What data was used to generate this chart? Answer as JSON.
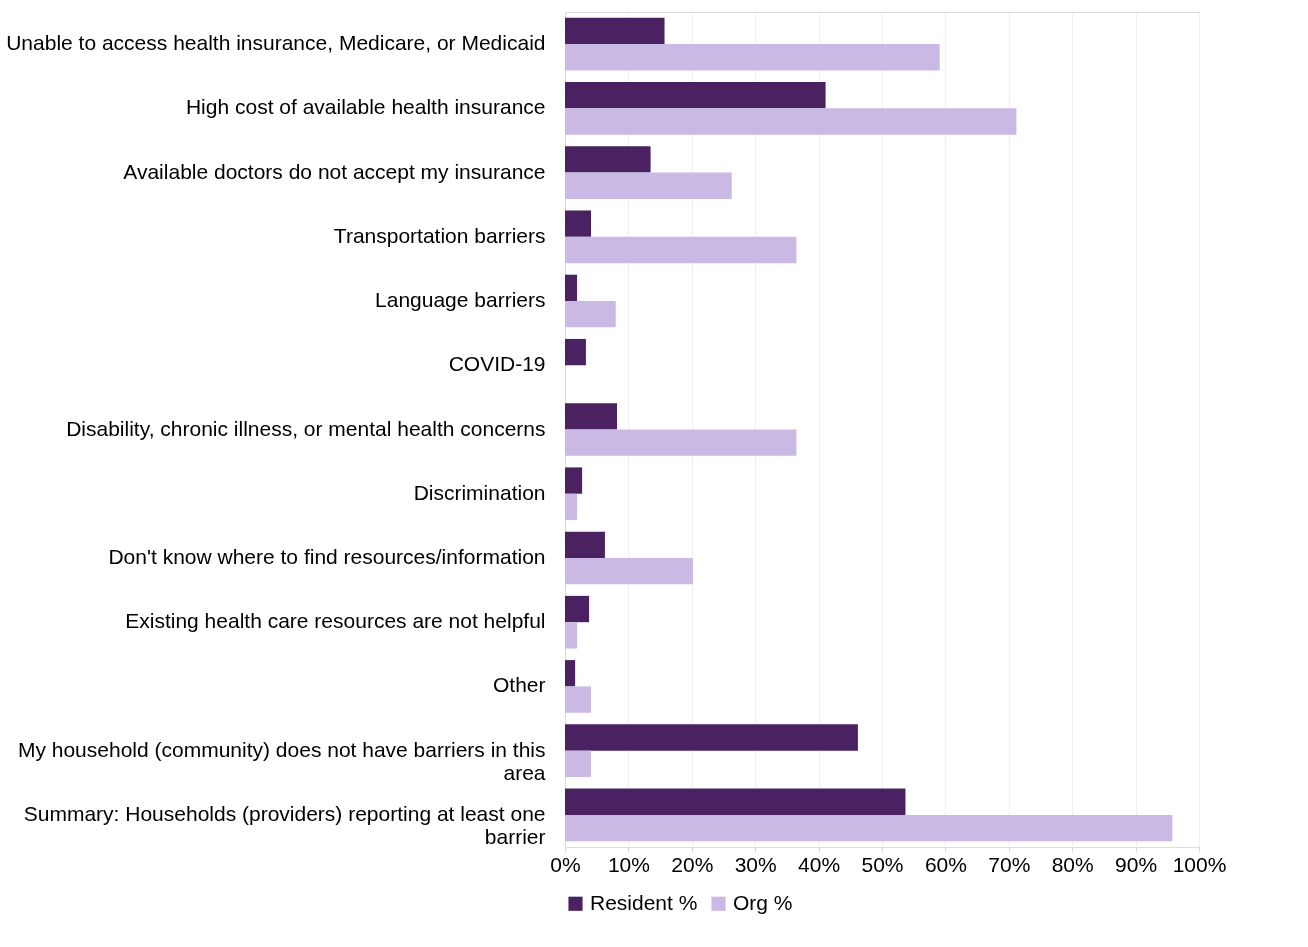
{
  "chart_data": {
    "type": "bar",
    "orientation": "horizontal",
    "categories": [
      "Unable to access health insurance, Medicare, or Medicaid",
      "High cost of available health insurance",
      "Available doctors do not accept my insurance",
      "Transportation barriers",
      "Language barriers",
      "COVID-19",
      "Disability, chronic illness, or mental health concerns",
      "Discrimination",
      "Don't know where to find resources/information",
      "Existing health care resources are not helpful",
      "Other",
      "My household (community) does not have barriers in this area",
      "Summary: Households (providers) reporting at least one barrier"
    ],
    "series": [
      {
        "name": "Resident %",
        "color": "#4a2262",
        "values": [
          15.7,
          41.1,
          13.5,
          4.1,
          1.9,
          3.3,
          8.2,
          2.7,
          6.3,
          3.8,
          1.6,
          46.2,
          53.7
        ]
      },
      {
        "name": "Org %",
        "color": "#cbb9e5",
        "values": [
          59.1,
          71.2,
          26.3,
          36.5,
          8.0,
          0,
          36.5,
          1.9,
          20.2,
          1.9,
          4.1,
          4.1,
          95.8
        ]
      }
    ],
    "xlim": [
      0,
      100
    ],
    "xticks": [
      {
        "value": 0,
        "label": "0%"
      },
      {
        "value": 10,
        "label": "10%"
      },
      {
        "value": 20,
        "label": "20%"
      },
      {
        "value": 30,
        "label": "30%"
      },
      {
        "value": 40,
        "label": "40%"
      },
      {
        "value": 50,
        "label": "50%"
      },
      {
        "value": 60,
        "label": "60%"
      },
      {
        "value": 70,
        "label": "70%"
      },
      {
        "value": 80,
        "label": "80%"
      },
      {
        "value": 90,
        "label": "90%"
      },
      {
        "value": 100,
        "label": "100%"
      }
    ],
    "grid": "x",
    "legend": "bottom"
  }
}
